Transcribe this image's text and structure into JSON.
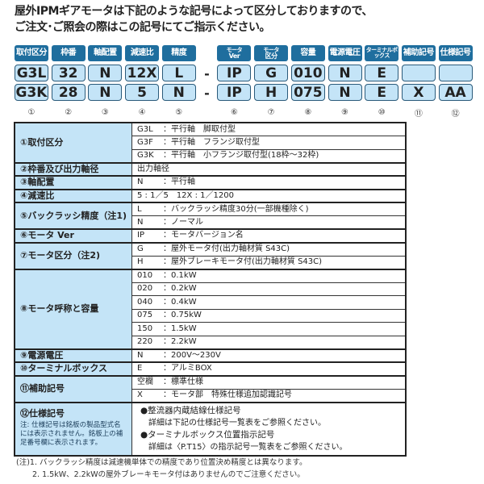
{
  "title": [
    "屋外IPMギアモータは下記のような記号によって区分しておりますので、",
    "ご注文･ご照会の際はこの記号にてご指示ください。"
  ],
  "headers": [
    "取付区分",
    "枠番",
    "軸配置",
    "減速比",
    "精度",
    "モータ|Ver",
    "モータ|区分",
    "容量",
    "電源電圧",
    "ターミナルボックス",
    "補助記号",
    "仕様記号"
  ],
  "example1": [
    "G3L",
    "32",
    "N",
    "12X",
    "L",
    "IP",
    "G",
    "010",
    "N",
    "E",
    "",
    ""
  ],
  "example2": [
    "G3K",
    "28",
    "N",
    "5",
    "N",
    "IP",
    "H",
    "075",
    "N",
    "E",
    "X",
    "AA"
  ],
  "dash": "-",
  "numbers": [
    "①",
    "②",
    "③",
    "④",
    "⑤",
    "⑥",
    "⑦",
    "⑧",
    "⑨",
    "⑩",
    "⑪",
    "⑫"
  ],
  "table": {
    "r1": {
      "label": "①取付区分",
      "items": [
        [
          "G3L",
          "：平行軸　脚取付型"
        ],
        [
          "G3F",
          "：平行軸　フランジ取付型"
        ],
        [
          "G3K",
          "：平行軸　小フランジ取付型(18枠～32枠)"
        ]
      ]
    },
    "r2": {
      "label": "②枠番及び出力軸径",
      "value": "出力軸径"
    },
    "r3": {
      "label": "③軸配置",
      "items": [
        [
          "N",
          "：平行軸"
        ]
      ]
    },
    "r4": {
      "label": "④減速比",
      "value": "5 : 1／5　12X : 1／1200"
    },
    "r5": {
      "label": "⑤バックラッシ精度（注1)",
      "items": [
        [
          "L",
          "：バックラッシ精度30分(一部機種除く)"
        ],
        [
          "N",
          "：ノーマル"
        ]
      ]
    },
    "r6": {
      "label": "⑥モータ Ver",
      "items": [
        [
          "IP",
          "：モータバージョン名"
        ]
      ]
    },
    "r7": {
      "label": "⑦モータ区分（注2)",
      "items": [
        [
          "G",
          "：屋外モータ付(出力軸材質 S43C)"
        ],
        [
          "H",
          "：屋外ブレーキモータ付(出力軸材質 S43C)"
        ]
      ]
    },
    "r8": {
      "label": "⑧モータ呼称と容量",
      "items": [
        [
          "010",
          "：0.1kW"
        ],
        [
          "020",
          "：0.2kW"
        ],
        [
          "040",
          "：0.4kW"
        ],
        [
          "075",
          "：0.75kW"
        ],
        [
          "150",
          "：1.5kW"
        ],
        [
          "220",
          "：2.2kW"
        ]
      ]
    },
    "r9": {
      "label": "⑨電源電圧",
      "items": [
        [
          "N",
          "：200V～230V"
        ]
      ]
    },
    "r10": {
      "label": "⑩ターミナルボックス",
      "items": [
        [
          "E",
          "：アルミBOX"
        ]
      ]
    },
    "r11": {
      "label": "⑪補助記号",
      "items": [
        [
          "空欄",
          "：標準仕様"
        ],
        [
          "X",
          "：モータ部　特殊仕様追加認識記号"
        ]
      ]
    },
    "r12": {
      "label": "⑫仕様記号",
      "note": "注: 仕様記号は銘板の製品型式名には表示されません。銘板上の補足番号欄に表示されます。",
      "lines": [
        "●整流器内蔵結線仕様記号",
        "詳細は下記の仕様記号一覧表をご参照ください。",
        "●ターミナルボックス位置指示記号",
        "詳細は〈P.T15〉の指示記号一覧表をご参照ください。"
      ]
    }
  },
  "notes": [
    "(注)1. バックラッシ精度は減速機単体での精度であり位置決め精度とは異なります。",
    "2. 1.5kW、2.2kWの屋外ブレーキモータ付はありませんのでご注意ください。"
  ],
  "colors": {
    "badge": "#1f6e9e",
    "cell": "#c4e4f7"
  }
}
